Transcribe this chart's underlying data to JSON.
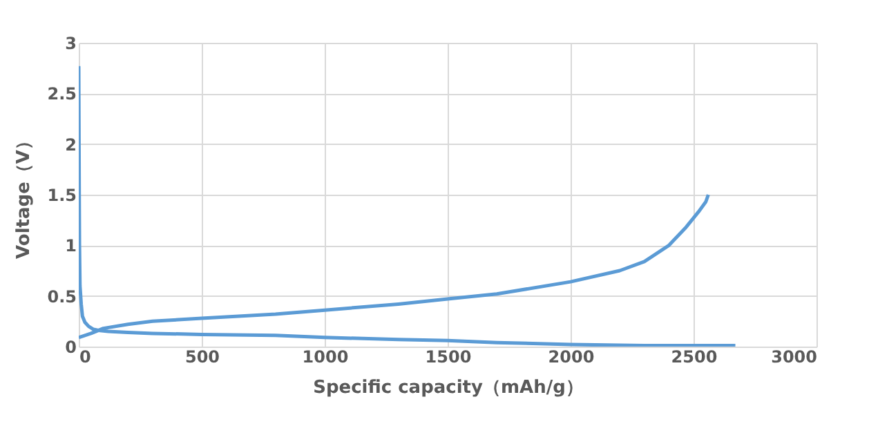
{
  "chart_data": {
    "type": "line",
    "xlabel": "Specific capacity（mAh/g）",
    "ylabel": "Voltage（V）",
    "xlim": [
      0,
      3000
    ],
    "xticks": [
      0,
      500,
      1000,
      1500,
      2000,
      2500,
      3000
    ],
    "ylim": [
      0,
      3
    ],
    "yticks": [
      0,
      0.5,
      1,
      1.5,
      2,
      2.5,
      3
    ],
    "grid": true,
    "legend": false,
    "marker": "none",
    "line_style": "solid",
    "series": [
      {
        "color": "#5b9bd5",
        "x": [
          0,
          2,
          3,
          5,
          10,
          15,
          25,
          40,
          60,
          80,
          120,
          200,
          300,
          500,
          800,
          1000,
          1300,
          1500,
          1700,
          2000,
          2300,
          2670
        ],
        "values": [
          2.77,
          1.5,
          1.0,
          0.6,
          0.42,
          0.3,
          0.24,
          0.2,
          0.17,
          0.16,
          0.15,
          0.14,
          0.13,
          0.12,
          0.11,
          0.09,
          0.07,
          0.06,
          0.04,
          0.02,
          0.01,
          0.01
        ]
      },
      {
        "color": "#5b9bd5",
        "x": [
          0,
          50,
          100,
          200,
          300,
          500,
          800,
          1000,
          1300,
          1500,
          1700,
          2000,
          2200,
          2300,
          2400,
          2470,
          2520,
          2550,
          2560
        ],
        "values": [
          0.09,
          0.13,
          0.18,
          0.22,
          0.25,
          0.28,
          0.32,
          0.36,
          0.42,
          0.47,
          0.52,
          0.64,
          0.75,
          0.84,
          1.0,
          1.18,
          1.33,
          1.43,
          1.5
        ]
      }
    ]
  }
}
